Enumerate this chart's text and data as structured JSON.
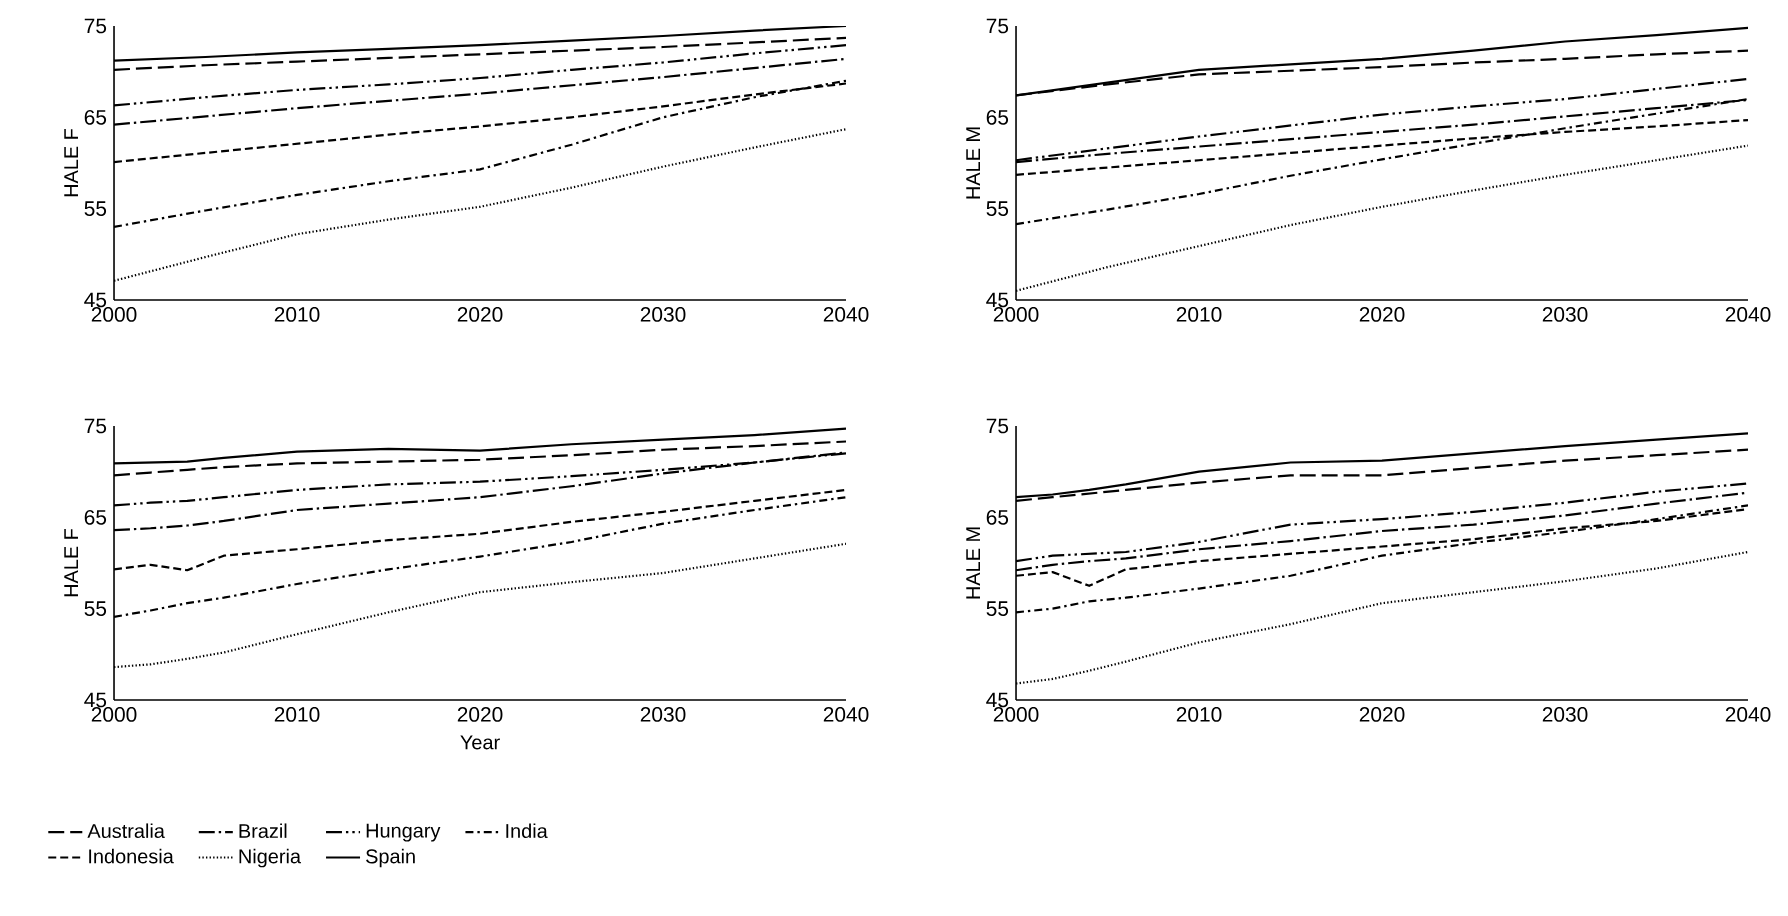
{
  "chart_data": [
    {
      "type": "line",
      "ylabel": "HALE F",
      "x": [
        2000,
        2005,
        2010,
        2015,
        2020,
        2025,
        2030,
        2035,
        2040
      ],
      "xlim": [
        2000,
        2040
      ],
      "xticks": [
        2000,
        2010,
        2020,
        2030,
        2040
      ],
      "ylim": [
        45,
        75
      ],
      "yticks": [
        45,
        55,
        65,
        75
      ],
      "legend": false,
      "series": [
        {
          "color": "#000000",
          "line_style": "longdash",
          "values": [
            70.2,
            70.7,
            71.1,
            71.5,
            71.9,
            72.3,
            72.7,
            73.2,
            73.7
          ]
        },
        {
          "color": "#000000",
          "line_style": "longdashdot",
          "values": [
            64.2,
            65.1,
            66.0,
            66.8,
            67.6,
            68.5,
            69.4,
            70.4,
            71.4
          ]
        },
        {
          "color": "#000000",
          "line_style": "longdashdotdot",
          "values": [
            66.3,
            67.2,
            68.0,
            68.6,
            69.3,
            70.2,
            71.0,
            72.0,
            72.9
          ]
        },
        {
          "color": "#000000",
          "line_style": "dashdot",
          "values": [
            53.0,
            54.8,
            56.5,
            58.0,
            59.3,
            62.0,
            65.0,
            67.2,
            69.0
          ]
        },
        {
          "color": "#000000",
          "line_style": "dashed",
          "values": [
            60.1,
            61.1,
            62.1,
            63.1,
            64.0,
            65.0,
            66.2,
            67.5,
            68.7
          ]
        },
        {
          "color": "#000000",
          "line_style": "dotted",
          "values": [
            47.1,
            49.7,
            52.2,
            53.8,
            55.2,
            57.3,
            59.6,
            61.7,
            63.7
          ]
        },
        {
          "color": "#000000",
          "line_style": "solid",
          "values": [
            71.2,
            71.6,
            72.1,
            72.5,
            72.9,
            73.4,
            73.9,
            74.5,
            75.0
          ]
        }
      ]
    },
    {
      "type": "line",
      "ylabel": "HALE M",
      "x": [
        2000,
        2005,
        2010,
        2015,
        2020,
        2025,
        2030,
        2035,
        2040
      ],
      "xlim": [
        2000,
        2040
      ],
      "xticks": [
        2000,
        2010,
        2020,
        2030,
        2040
      ],
      "ylim": [
        45,
        75
      ],
      "yticks": [
        45,
        55,
        65,
        75
      ],
      "legend": false,
      "series": [
        {
          "color": "#000000",
          "line_style": "longdash",
          "values": [
            67.4,
            68.6,
            69.7,
            70.1,
            70.5,
            71.0,
            71.4,
            71.9,
            72.3
          ]
        },
        {
          "color": "#000000",
          "line_style": "longdashdot",
          "values": [
            60.1,
            61.0,
            61.8,
            62.6,
            63.4,
            64.2,
            65.1,
            66.0,
            66.9
          ]
        },
        {
          "color": "#000000",
          "line_style": "longdashdotdot",
          "values": [
            60.3,
            61.6,
            62.9,
            64.1,
            65.3,
            66.2,
            67.0,
            68.1,
            69.2
          ]
        },
        {
          "color": "#000000",
          "line_style": "dashdot",
          "values": [
            53.3,
            54.9,
            56.6,
            58.6,
            60.4,
            62.1,
            63.8,
            65.4,
            67.0
          ]
        },
        {
          "color": "#000000",
          "line_style": "dashed",
          "values": [
            58.7,
            59.5,
            60.3,
            61.1,
            61.9,
            62.7,
            63.4,
            64.0,
            64.7
          ]
        },
        {
          "color": "#000000",
          "line_style": "dotted",
          "values": [
            46.0,
            48.6,
            50.9,
            53.2,
            55.2,
            57.0,
            58.7,
            60.3,
            61.9
          ]
        },
        {
          "color": "#000000",
          "line_style": "solid",
          "values": [
            67.4,
            68.8,
            70.2,
            70.8,
            71.4,
            72.3,
            73.3,
            74.0,
            74.8
          ]
        }
      ]
    },
    {
      "type": "line",
      "xlabel": "Year",
      "ylabel": "HALE F",
      "x": [
        2000,
        2002,
        2004,
        2006,
        2010,
        2015,
        2020,
        2025,
        2030,
        2035,
        2040
      ],
      "xlim": [
        2000,
        2040
      ],
      "xticks": [
        2000,
        2010,
        2020,
        2030,
        2040
      ],
      "ylim": [
        45,
        75
      ],
      "yticks": [
        45,
        55,
        65,
        75
      ],
      "legend": "bottom",
      "series": [
        {
          "name": "Australia",
          "color": "#000000",
          "line_style": "longdash",
          "values": [
            69.6,
            69.9,
            70.2,
            70.5,
            70.9,
            71.1,
            71.3,
            71.8,
            72.4,
            72.8,
            73.3
          ]
        },
        {
          "name": "Brazil",
          "color": "#000000",
          "line_style": "longdashdot",
          "values": [
            63.6,
            63.8,
            64.1,
            64.6,
            65.8,
            66.5,
            67.2,
            68.4,
            69.8,
            71.0,
            72.1
          ]
        },
        {
          "name": "Hungary",
          "color": "#000000",
          "line_style": "longdashdotdot",
          "values": [
            66.3,
            66.6,
            66.8,
            67.2,
            68.0,
            68.6,
            68.9,
            69.5,
            70.2,
            71.0,
            72.0
          ]
        },
        {
          "name": "India",
          "color": "#000000",
          "line_style": "dashdot",
          "values": [
            54.1,
            54.8,
            55.6,
            56.2,
            57.7,
            59.3,
            60.7,
            62.3,
            64.3,
            65.8,
            67.2
          ]
        },
        {
          "name": "Indonesia",
          "color": "#000000",
          "line_style": "dashed",
          "values": [
            59.3,
            59.8,
            59.2,
            60.8,
            61.5,
            62.5,
            63.2,
            64.5,
            65.6,
            66.8,
            68.0
          ]
        },
        {
          "name": "Nigeria",
          "color": "#000000",
          "line_style": "dotted",
          "values": [
            48.6,
            48.9,
            49.5,
            50.2,
            52.2,
            54.6,
            56.8,
            57.9,
            58.9,
            60.5,
            62.1
          ]
        },
        {
          "name": "Spain",
          "color": "#000000",
          "line_style": "solid",
          "values": [
            70.9,
            71.0,
            71.1,
            71.5,
            72.2,
            72.5,
            72.3,
            73.0,
            73.5,
            74.0,
            74.7
          ]
        }
      ]
    },
    {
      "type": "line",
      "ylabel": "HALE M",
      "x": [
        2000,
        2002,
        2004,
        2006,
        2010,
        2015,
        2020,
        2025,
        2030,
        2035,
        2040
      ],
      "xlim": [
        2000,
        2040
      ],
      "xticks": [
        2000,
        2010,
        2020,
        2030,
        2040
      ],
      "ylim": [
        45,
        75
      ],
      "yticks": [
        45,
        55,
        65,
        75
      ],
      "legend": false,
      "series": [
        {
          "color": "#000000",
          "line_style": "longdash",
          "values": [
            66.8,
            67.2,
            67.6,
            68.0,
            68.8,
            69.6,
            69.6,
            70.4,
            71.2,
            71.8,
            72.4
          ]
        },
        {
          "color": "#000000",
          "line_style": "longdashdot",
          "values": [
            59.2,
            59.8,
            60.2,
            60.5,
            61.5,
            62.4,
            63.5,
            64.2,
            65.2,
            66.5,
            67.7
          ]
        },
        {
          "color": "#000000",
          "line_style": "longdashdotdot",
          "values": [
            60.2,
            60.8,
            61.0,
            61.2,
            62.3,
            64.2,
            64.8,
            65.6,
            66.6,
            67.8,
            68.7
          ]
        },
        {
          "color": "#000000",
          "line_style": "dashdot",
          "values": [
            54.6,
            55.0,
            55.8,
            56.2,
            57.2,
            58.6,
            60.8,
            62.2,
            63.4,
            64.8,
            66.3
          ]
        },
        {
          "color": "#000000",
          "line_style": "dashed",
          "values": [
            58.6,
            59.0,
            57.5,
            59.3,
            60.2,
            61.0,
            61.8,
            62.6,
            63.8,
            64.6,
            65.9
          ]
        },
        {
          "color": "#000000",
          "line_style": "dotted",
          "values": [
            46.8,
            47.3,
            48.2,
            49.2,
            51.3,
            53.3,
            55.6,
            56.8,
            58.0,
            59.4,
            61.2
          ]
        },
        {
          "color": "#000000",
          "line_style": "solid",
          "values": [
            67.2,
            67.5,
            68.0,
            68.6,
            70.0,
            71.0,
            71.2,
            72.0,
            72.8,
            73.5,
            74.2
          ]
        }
      ]
    }
  ]
}
